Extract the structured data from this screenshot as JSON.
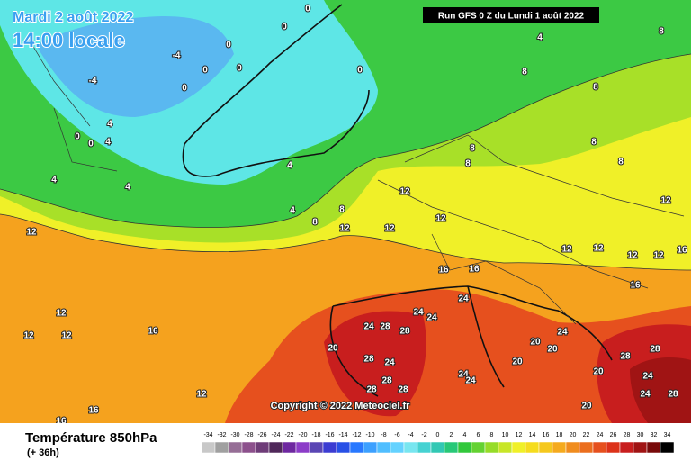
{
  "header": {
    "date": "Mardi 2 août 2022",
    "time": "14:00 locale",
    "run": "Run GFS 0 Z du Lundi 1 août 2022"
  },
  "map": {
    "labels": [
      -4,
      -4,
      0,
      0,
      0,
      0,
      0,
      0,
      0,
      0,
      0,
      4,
      4,
      4,
      4,
      4,
      4,
      4,
      8,
      8,
      8,
      8,
      8,
      8,
      8,
      8,
      8,
      12,
      12,
      12,
      12,
      12,
      12,
      12,
      12,
      12,
      12,
      12,
      12,
      12,
      12,
      16,
      16,
      16,
      16,
      16,
      16,
      16,
      20,
      20,
      20,
      20,
      20,
      20,
      24,
      24,
      24,
      24,
      24,
      24,
      24,
      24,
      24,
      24,
      28,
      28,
      28,
      28,
      28,
      28,
      28,
      28,
      28
    ],
    "copyright": "Copyright © 2022 Meteociel.fr"
  },
  "legend": {
    "title": "Température 850hPa",
    "lead": "(+ 36h)",
    "scale": [
      -34,
      -32,
      -30,
      -28,
      -26,
      -24,
      -22,
      -20,
      -18,
      -16,
      -14,
      -12,
      -10,
      -8,
      -6,
      -4,
      -2,
      0,
      2,
      4,
      6,
      8,
      10,
      12,
      14,
      16,
      18,
      20,
      22,
      24,
      26,
      28,
      30,
      32,
      34
    ],
    "colors": [
      "#c8c8c8",
      "#a0a0a0",
      "#966e96",
      "#8c508c",
      "#6e3c78",
      "#50285a",
      "#6e28a0",
      "#8c3cc8",
      "#5a46b4",
      "#3c3cd2",
      "#2850e6",
      "#2878ff",
      "#3ca0ff",
      "#50beff",
      "#64d2ff",
      "#78e6f0",
      "#46d2d2",
      "#32c8b4",
      "#28c878",
      "#32c83c",
      "#64d232",
      "#96dc28",
      "#c8e628",
      "#f0f028",
      "#f5dc1e",
      "#f5c81e",
      "#f5aa1e",
      "#f08c1e",
      "#eb6e1e",
      "#e6501e",
      "#dc3219",
      "#c81e1e",
      "#a01414",
      "#780a0a",
      "#000000"
    ]
  }
}
